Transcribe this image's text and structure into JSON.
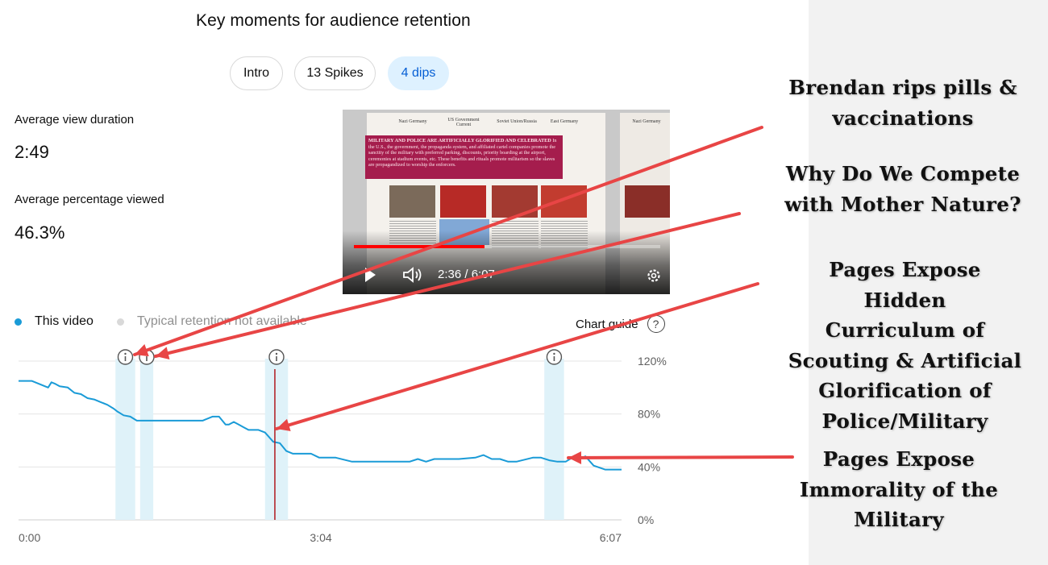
{
  "title": "Key moments for audience retention",
  "chips": [
    {
      "label": "Intro",
      "active": false
    },
    {
      "label": "13 Spikes",
      "active": false
    },
    {
      "label": "4 dips",
      "active": true
    }
  ],
  "metrics": {
    "avg_view_duration_label": "Average view duration",
    "avg_view_duration_value": "2:49",
    "avg_pct_viewed_label": "Average percentage viewed",
    "avg_pct_viewed_value": "46.3%"
  },
  "video": {
    "time_display": "2:36 / 6:07",
    "progress_fraction": 0.425,
    "headers": [
      "Nazi Germany",
      "US Government Current",
      "Soviet Union/Russia",
      "East Germany",
      "Nazi Germany"
    ],
    "heading_text": "MILITARY AND POLICE ARE ARTIFICIALLY GLORIFIED AND CELEBRATED",
    "body_text": "In the U.S., the government, the propaganda system, and affiliated cartel companies promote the sanctity of the military with preferred parking, discounts, priority boarding at the airport, ceremonies at stadium events, etc. These benefits and rituals promote militarism so the slaves are propagandized to worship the enforcers."
  },
  "legend": {
    "this_video": "This video",
    "typical": "Typical retention not available",
    "chart_guide": "Chart guide",
    "help_symbol": "?",
    "this_video_color": "#1a9bd7",
    "typical_color": "#d9d9d9"
  },
  "chart_data": {
    "type": "line",
    "title": "",
    "xlabel": "",
    "ylabel": "",
    "x_tick_labels": [
      "0:00",
      "3:04",
      "6:07"
    ],
    "x_tick_seconds": [
      0,
      184,
      367
    ],
    "y_tick_labels": [
      "120%",
      "80%",
      "40%",
      "0%"
    ],
    "y_tick_values": [
      120,
      80,
      40,
      0
    ],
    "ylim": [
      0,
      120
    ],
    "xlim": [
      0,
      367
    ],
    "grid": true,
    "current_time_seconds": 156,
    "line_color": "#1a9bd7",
    "series": [
      {
        "name": "This video",
        "x": [
          0,
          8,
          16,
          18,
          20,
          22,
          25,
          30,
          34,
          38,
          42,
          46,
          50,
          54,
          58,
          60,
          64,
          68,
          72,
          76,
          80,
          86,
          95,
          105,
          112,
          118,
          122,
          126,
          128,
          131,
          134,
          137,
          140,
          146,
          150,
          155,
          159,
          163,
          167,
          172,
          178,
          183,
          193,
          203,
          218,
          228,
          238,
          243,
          248,
          253,
          258,
          268,
          278,
          283,
          288,
          293,
          298,
          303,
          313,
          318,
          323,
          328,
          333,
          337,
          341,
          345,
          350,
          357,
          362,
          367
        ],
        "y": [
          105,
          105,
          101,
          100,
          104,
          103,
          101,
          100,
          96,
          95,
          92,
          91,
          89,
          87,
          84,
          82,
          79,
          78,
          75,
          75,
          75,
          75,
          75,
          75,
          75,
          78,
          78,
          72,
          72,
          74,
          72,
          70,
          68,
          68,
          66,
          59,
          58,
          52,
          50,
          50,
          50,
          47,
          47,
          44,
          44,
          44,
          44,
          46,
          44,
          46,
          46,
          46,
          47,
          49,
          46,
          46,
          44,
          44,
          47,
          47,
          45,
          44,
          44,
          47,
          46,
          48,
          41,
          38,
          38,
          38
        ]
      }
    ],
    "key_moment_bands_seconds": [
      [
        59,
        71
      ],
      [
        74,
        82
      ],
      [
        150,
        164
      ],
      [
        320,
        332
      ]
    ],
    "key_moment_markers_seconds": [
      65,
      78,
      157,
      326
    ]
  },
  "annotations": [
    {
      "lines": [
        "Brendan rips pills &",
        "vaccinations"
      ]
    },
    {
      "lines": [
        "Why Do We Compete",
        "with Mother Nature?"
      ]
    },
    {
      "lines": [
        "Pages Expose Hidden",
        "Curriculum of",
        "Scouting & Artificial",
        "Glorification of",
        "Police/Military"
      ]
    },
    {
      "lines": [
        "Pages Expose",
        "Immorality of the",
        "Military"
      ]
    }
  ],
  "annotation_color": "#e84545"
}
